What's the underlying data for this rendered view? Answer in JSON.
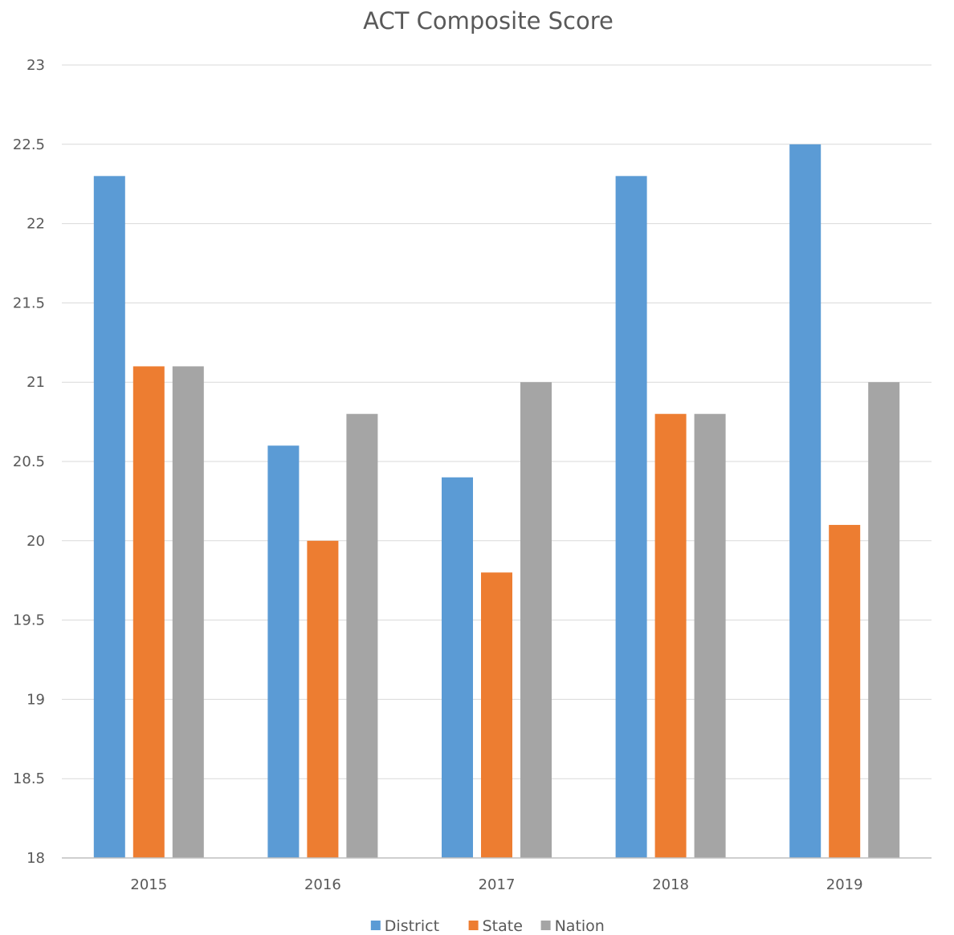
{
  "chart_data": {
    "type": "bar",
    "title": "ACT Composite Score",
    "xlabel": "",
    "ylabel": "",
    "categories": [
      "2015",
      "2016",
      "2017",
      "2018",
      "2019"
    ],
    "series": [
      {
        "name": "District",
        "color": "#5b9bd5",
        "values": [
          22.3,
          20.6,
          20.4,
          22.3,
          22.5
        ]
      },
      {
        "name": "State",
        "color": "#ed7d31",
        "values": [
          21.1,
          20.0,
          19.8,
          20.8,
          20.1
        ]
      },
      {
        "name": "Nation",
        "color": "#a5a5a5",
        "values": [
          21.1,
          20.8,
          21.0,
          20.8,
          21.0
        ]
      }
    ],
    "ylim": [
      18,
      23
    ],
    "yticks": [
      "18",
      "18.5",
      "19",
      "19.5",
      "20",
      "20.5",
      "21",
      "21.5",
      "22",
      "22.5",
      "23"
    ],
    "grid": true,
    "legend_position": "bottom"
  }
}
